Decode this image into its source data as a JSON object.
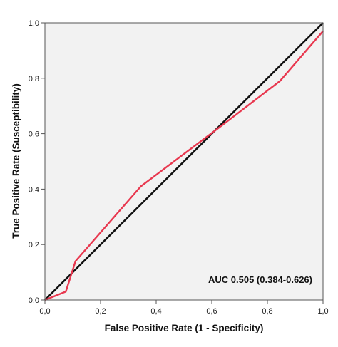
{
  "chart_data": {
    "type": "line",
    "title": "",
    "xlabel": "False Positive Rate (1 - Specificity)",
    "ylabel": "True Positive Rate (Susceptibility)",
    "xlim": [
      0,
      1
    ],
    "ylim": [
      0,
      1
    ],
    "x_ticks": [
      0,
      0.2,
      0.4,
      0.6,
      0.8,
      1.0
    ],
    "y_ticks": [
      0,
      0.2,
      0.4,
      0.6,
      0.8,
      1.0
    ],
    "x_tick_labels": [
      "0,0",
      "0,2",
      "0,4",
      "0,6",
      "0,8",
      "1,0"
    ],
    "y_tick_labels": [
      "0,0",
      "0,2",
      "0,4",
      "0,6",
      "0,8",
      "1,0"
    ],
    "grid": false,
    "series": [
      {
        "role": "roc",
        "color": "#e8384f",
        "x": [
          0.0,
          0.075,
          0.11,
          0.345,
          0.63,
          0.845,
          1.0
        ],
        "y": [
          0.0,
          0.03,
          0.14,
          0.41,
          0.625,
          0.79,
          0.97
        ]
      },
      {
        "role": "reference",
        "color": "#111111",
        "x": [
          0.0,
          1.0
        ],
        "y": [
          0.0,
          1.0
        ]
      }
    ],
    "annotation": "AUC 0.505 (0.384-0.626)",
    "plot_background": "#f2f2f2"
  }
}
